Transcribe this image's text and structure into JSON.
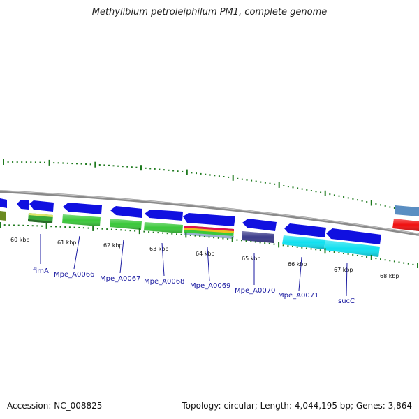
{
  "title": "Methylibium petroleiphilum PM1, complete genome",
  "footer": {
    "accession": "Accession: NC_008825",
    "stats": "Topology: circular; Length: 4,044,195 bp; Genes: 3,864"
  },
  "colors": {
    "backbone": "#8a8a8a",
    "tick": "#1e7a1e",
    "forward_arrow": "#1010e0",
    "label": "#1a1aa0"
  },
  "kbp_ticks": [
    "60 kbp",
    "61 kbp",
    "62 kbp",
    "63 kbp",
    "64 kbp",
    "65 kbp",
    "66 kbp",
    "67 kbp",
    "68 kbp"
  ],
  "genes": [
    {
      "name": "fimA"
    },
    {
      "name": "Mpe_A0066"
    },
    {
      "name": "Mpe_A0067"
    },
    {
      "name": "Mpe_A0068"
    },
    {
      "name": "Mpe_A0069"
    },
    {
      "name": "Mpe_A0070"
    },
    {
      "name": "Mpe_A0071"
    },
    {
      "name": "sucC"
    }
  ]
}
